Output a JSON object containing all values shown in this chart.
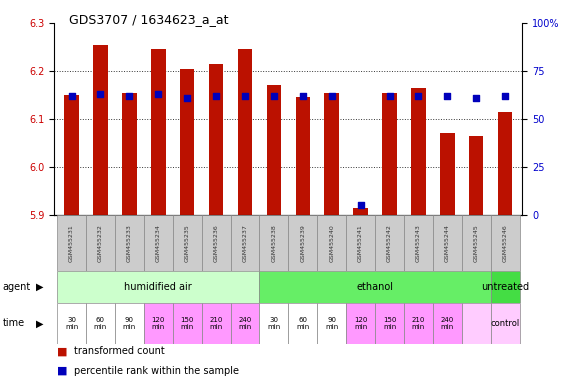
{
  "title": "GDS3707 / 1634623_a_at",
  "samples": [
    "GSM455231",
    "GSM455232",
    "GSM455233",
    "GSM455234",
    "GSM455235",
    "GSM455236",
    "GSM455237",
    "GSM455238",
    "GSM455239",
    "GSM455240",
    "GSM455241",
    "GSM455242",
    "GSM455243",
    "GSM455244",
    "GSM455245",
    "GSM455246"
  ],
  "transformed_count": [
    6.15,
    6.255,
    6.155,
    6.245,
    6.205,
    6.215,
    6.245,
    6.17,
    6.145,
    6.155,
    5.915,
    6.155,
    6.165,
    6.07,
    6.065,
    6.115
  ],
  "percentile_rank": [
    62,
    63,
    62,
    63,
    61,
    62,
    62,
    62,
    62,
    62,
    5,
    62,
    62,
    62,
    61,
    62
  ],
  "ylim": [
    5.9,
    6.3
  ],
  "y2lim": [
    0,
    100
  ],
  "yticks": [
    5.9,
    6.0,
    6.1,
    6.2,
    6.3
  ],
  "y2ticks": [
    0,
    25,
    50,
    75,
    100
  ],
  "bar_color": "#bb1100",
  "dot_color": "#0000bb",
  "bar_bottom": 5.9,
  "agent_defs": [
    {
      "label": "humidified air",
      "start": 0,
      "end": 7,
      "color": "#ccffcc"
    },
    {
      "label": "ethanol",
      "start": 7,
      "end": 15,
      "color": "#66ee66"
    },
    {
      "label": "untreated",
      "start": 15,
      "end": 16,
      "color": "#44dd44"
    }
  ],
  "time_labels": [
    "30\nmin",
    "60\nmin",
    "90\nmin",
    "120\nmin",
    "150\nmin",
    "210\nmin",
    "240\nmin",
    "30\nmin",
    "60\nmin",
    "90\nmin",
    "120\nmin",
    "150\nmin",
    "210\nmin",
    "240\nmin",
    "",
    "control"
  ],
  "time_colors": [
    "#ffffff",
    "#ffffff",
    "#ffffff",
    "#ff99ff",
    "#ff99ff",
    "#ff99ff",
    "#ff99ff",
    "#ffffff",
    "#ffffff",
    "#ffffff",
    "#ff99ff",
    "#ff99ff",
    "#ff99ff",
    "#ff99ff",
    "#ffccff",
    "#ffccff"
  ],
  "legend_bar_label": "transformed count",
  "legend_dot_label": "percentile rank within the sample",
  "grid_color": "#333333",
  "bg_color": "#ffffff",
  "left_tick_color": "#cc0000",
  "right_tick_color": "#0000cc",
  "sample_box_color": "#cccccc",
  "sample_text_color": "#333333"
}
